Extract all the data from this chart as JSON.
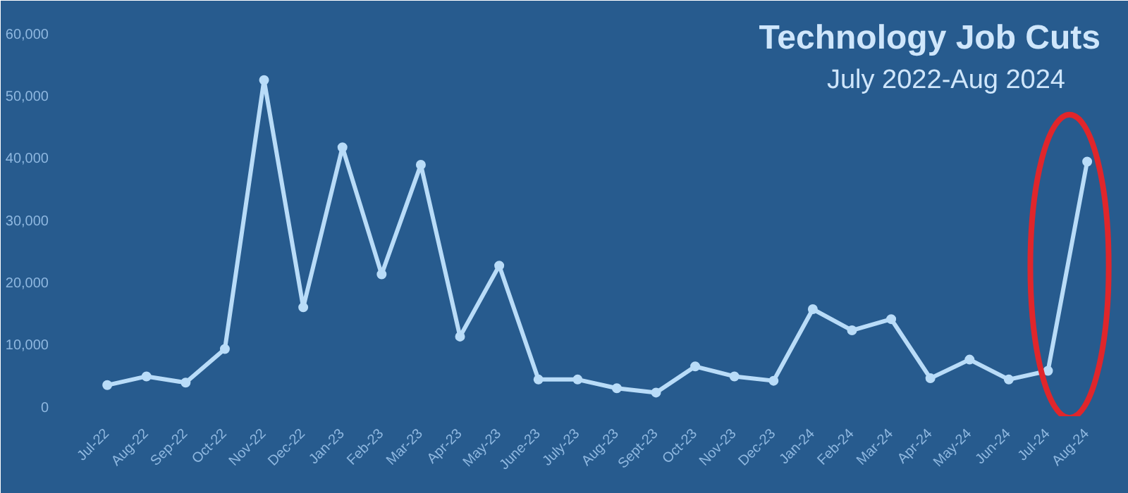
{
  "chart_data": {
    "type": "line",
    "title": "Technology Job Cuts",
    "subtitle": "July 2022-Aug 2024",
    "categories": [
      "Jul-22",
      "Aug-22",
      "Sep-22",
      "Oct-22",
      "Nov-22",
      "Dec-22",
      "Jan-23",
      "Feb-23",
      "Mar-23",
      "Apr-23",
      "May-23",
      "June-23",
      "July-23",
      "Aug-23",
      "Sept-23",
      "Oct-23",
      "Nov-23",
      "Dec-23",
      "Jan-24",
      "Feb-24",
      "Mar-24",
      "Apr-24",
      "May-24",
      "Jun-24",
      "Jul-24",
      "Aug-24"
    ],
    "series": [
      {
        "color": "#b9dcf8",
        "values": [
          3500,
          4900,
          3900,
          9300,
          52500,
          16000,
          41700,
          21300,
          38900,
          11300,
          22700,
          4400,
          4400,
          3000,
          2300,
          6500,
          4900,
          4200,
          15700,
          12300,
          14100,
          4600,
          7600,
          4400,
          5800,
          39400
        ]
      }
    ],
    "ylim": [
      -1500,
      63000
    ],
    "yticks": [
      {
        "value": 0,
        "label": "0"
      },
      {
        "value": 10000,
        "label": "10,000"
      },
      {
        "value": 20000,
        "label": "20,000"
      },
      {
        "value": 30000,
        "label": "30,000"
      },
      {
        "value": 40000,
        "label": "40,000"
      },
      {
        "value": 50000,
        "label": "50,000"
      },
      {
        "value": 60000,
        "label": "60,000"
      }
    ],
    "grid": false,
    "marker": "circle",
    "line_style": "solid"
  }
}
